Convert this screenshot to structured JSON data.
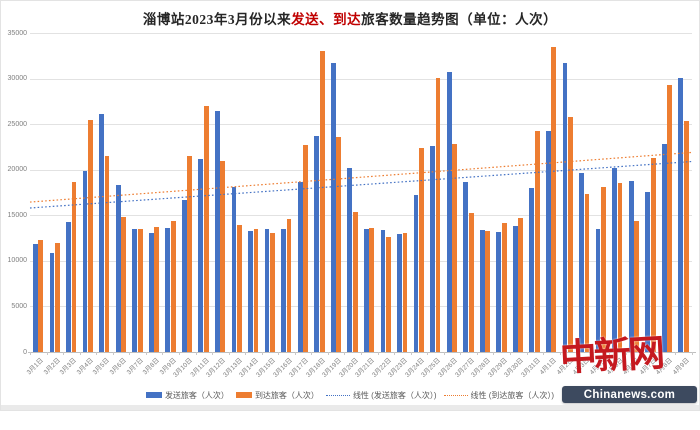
{
  "title": {
    "prefix": "淄博站2023年3月份以来",
    "highlight": "发送、到达",
    "suffix": "旅客数量趋势图（单位：人次）"
  },
  "watermark": {
    "logo": "中新网",
    "site": "Chinanews.com"
  },
  "legend": {
    "items": [
      {
        "label": "发送旅客（人次）",
        "type": "bar",
        "color": "#4472C4"
      },
      {
        "label": "到达旅客（人次）",
        "type": "bar",
        "color": "#ED7D31"
      },
      {
        "label": "线性 (发送旅客（人次）)",
        "type": "dotted",
        "color": "#4472C4"
      },
      {
        "label": "线性 (到达旅客（人次）)",
        "type": "dotted",
        "color": "#ED7D31"
      }
    ]
  },
  "chart_data": {
    "type": "bar",
    "title": "淄博站2023年3月份以来发送、到达旅客数量趋势图（单位：人次）",
    "categories": [
      "3月1日",
      "3月2日",
      "3月3日",
      "3月4日",
      "3月5日",
      "3月6日",
      "3月7日",
      "3月8日",
      "3月9日",
      "3月10日",
      "3月11日",
      "3月12日",
      "3月13日",
      "3月14日",
      "3月15日",
      "3月16日",
      "3月17日",
      "3月18日",
      "3月19日",
      "3月20日",
      "3月21日",
      "3月22日",
      "3月23日",
      "3月24日",
      "3月25日",
      "3月26日",
      "3月27日",
      "3月28日",
      "3月29日",
      "3月30日",
      "3月31日",
      "4月1日",
      "4月2日",
      "4月3日",
      "4月4日",
      "4月5日",
      "4月6日",
      "4月7日",
      "4月8日",
      "4月9日"
    ],
    "series": [
      {
        "name": "发送旅客（人次）",
        "color": "#4472C4",
        "values": [
          11900,
          10900,
          14250,
          19900,
          26150,
          18300,
          13450,
          13100,
          13600,
          16700,
          21200,
          26450,
          18100,
          13300,
          13550,
          13550,
          18700,
          23700,
          31750,
          20200,
          13450,
          13400,
          12900,
          17200,
          22650,
          30750,
          18600,
          13350,
          13200,
          13850,
          18000,
          24250,
          31750,
          19600,
          13450,
          20150,
          18750,
          17600,
          22800,
          30050
        ]
      },
      {
        "name": "到达旅客（人次）",
        "color": "#ED7D31",
        "values": [
          12300,
          11950,
          18650,
          25500,
          21500,
          14800,
          13550,
          13750,
          14400,
          21550,
          27000,
          21000,
          13900,
          13450,
          13100,
          14550,
          22700,
          33000,
          23600,
          15400,
          13600,
          12650,
          13050,
          22350,
          30100,
          22800,
          15300,
          13300,
          14200,
          14650,
          24300,
          33500,
          25800,
          17300,
          18100,
          18500,
          14350,
          21250,
          29250,
          25350
        ]
      }
    ],
    "trendlines": [
      {
        "name": "线性 (发送旅客（人次）)",
        "color": "#4472C4",
        "start": 15800,
        "end": 20900
      },
      {
        "name": "线性 (到达旅客（人次）)",
        "color": "#ED7D31",
        "start": 16450,
        "end": 21900
      }
    ],
    "ylim": [
      0,
      35000
    ],
    "yticks": [
      0,
      5000,
      10000,
      15000,
      20000,
      25000,
      30000,
      35000
    ],
    "grid": "horizontal",
    "legend_position": "bottom"
  }
}
